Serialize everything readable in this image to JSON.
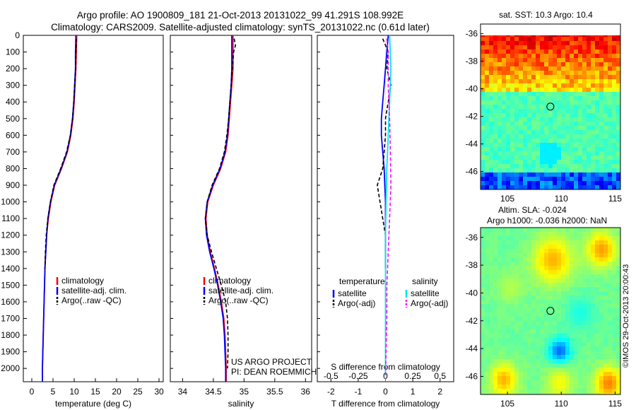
{
  "header": {
    "title_line1": "Argo profile: AO 1900809_181 21-Oct-2013 20131022_99 41.291S 108.992E",
    "title_line2": "Climatology: CARS2009. Satellite-adjusted climatology: synTS_20131022.nc (0.61d later)"
  },
  "project_note": {
    "line1": "US ARGO PROJECT",
    "line2": "PI: DEAN ROEMMICH"
  },
  "footer_stamp": "©IMOS 29-Oct-2013 20:00:43",
  "colors": {
    "climatology": "#ff0000",
    "satellite": "#0000ff",
    "argo": "#000000",
    "salinity_satellite": "#00e5ee",
    "salinity_argo": "#ff00ff"
  },
  "chart_data": [
    {
      "type": "line",
      "panel": "temperature",
      "xlabel": "temperature (deg C)",
      "ylabel": "",
      "xlim": [
        -2,
        31
      ],
      "ylim": [
        2080,
        0
      ],
      "xticks": [
        "0",
        "5",
        "10",
        "15",
        "20",
        "25",
        "30"
      ],
      "yticks": [
        "0",
        "100",
        "200",
        "300",
        "400",
        "500",
        "600",
        "700",
        "800",
        "900",
        "1000",
        "1100",
        "1200",
        "1300",
        "1400",
        "1500",
        "1600",
        "1700",
        "1800",
        "1900",
        "2000"
      ],
      "legend": [
        "climatology",
        "satellite-adj. clim.",
        "Argo(..raw -QC)"
      ],
      "series": [
        {
          "name": "climatology",
          "color": "#ff0000",
          "style": "solid",
          "points": [
            [
              10.6,
              0
            ],
            [
              10.5,
              100
            ],
            [
              10.4,
              200
            ],
            [
              10.2,
              300
            ],
            [
              10.0,
              400
            ],
            [
              9.7,
              500
            ],
            [
              9.2,
              600
            ],
            [
              8.4,
              700
            ],
            [
              7.0,
              800
            ],
            [
              5.4,
              900
            ],
            [
              4.5,
              1000
            ],
            [
              3.9,
              1100
            ],
            [
              3.5,
              1200
            ],
            [
              3.3,
              1300
            ],
            [
              3.1,
              1400
            ],
            [
              3.0,
              1500
            ],
            [
              2.9,
              1600
            ],
            [
              2.8,
              1700
            ],
            [
              2.7,
              1800
            ],
            [
              2.6,
              1900
            ],
            [
              2.5,
              2000
            ],
            [
              2.5,
              2080
            ]
          ]
        },
        {
          "name": "satellite-adj. clim.",
          "color": "#0000ff",
          "style": "solid",
          "points": [
            [
              10.4,
              0
            ],
            [
              10.3,
              100
            ],
            [
              10.3,
              200
            ],
            [
              10.1,
              300
            ],
            [
              9.9,
              400
            ],
            [
              9.6,
              500
            ],
            [
              9.1,
              600
            ],
            [
              8.3,
              700
            ],
            [
              6.9,
              800
            ],
            [
              5.3,
              900
            ],
            [
              4.4,
              1000
            ],
            [
              3.8,
              1100
            ],
            [
              3.5,
              1200
            ],
            [
              3.3,
              1300
            ],
            [
              3.1,
              1400
            ],
            [
              3.0,
              1500
            ],
            [
              2.9,
              1600
            ],
            [
              2.8,
              1700
            ],
            [
              2.7,
              1800
            ],
            [
              2.6,
              1900
            ],
            [
              2.5,
              2000
            ],
            [
              2.5,
              2080
            ]
          ]
        },
        {
          "name": "Argo(..raw -QC)",
          "color": "#000000",
          "style": "dashed",
          "points": [
            [
              10.5,
              20
            ],
            [
              10.4,
              100
            ],
            [
              10.3,
              200
            ],
            [
              10.1,
              300
            ],
            [
              9.9,
              400
            ],
            [
              9.6,
              500
            ],
            [
              9.1,
              600
            ],
            [
              8.2,
              700
            ],
            [
              6.8,
              800
            ],
            [
              5.2,
              900
            ],
            [
              4.4,
              1000
            ],
            [
              3.8,
              1100
            ],
            [
              3.4,
              1200
            ],
            [
              3.2,
              1300
            ],
            [
              3.1,
              1400
            ]
          ]
        }
      ]
    },
    {
      "type": "line",
      "panel": "salinity",
      "xlabel": "salinity",
      "ylabel": "",
      "xlim": [
        33.8,
        36.1
      ],
      "ylim": [
        2080,
        0
      ],
      "xticks": [
        "34",
        "34.5",
        "35",
        "35.5",
        "36"
      ],
      "legend": [
        "climatology",
        "satellite-adj. clim.",
        "Argo(..raw -QC)"
      ],
      "series": [
        {
          "name": "climatology",
          "color": "#ff0000",
          "style": "solid",
          "points": [
            [
              34.82,
              0
            ],
            [
              34.82,
              100
            ],
            [
              34.82,
              200
            ],
            [
              34.8,
              300
            ],
            [
              34.78,
              400
            ],
            [
              34.76,
              500
            ],
            [
              34.74,
              600
            ],
            [
              34.7,
              700
            ],
            [
              34.62,
              800
            ],
            [
              34.5,
              900
            ],
            [
              34.41,
              1000
            ],
            [
              34.38,
              1100
            ],
            [
              34.4,
              1200
            ],
            [
              34.45,
              1300
            ],
            [
              34.52,
              1400
            ],
            [
              34.58,
              1500
            ],
            [
              34.63,
              1600
            ],
            [
              34.67,
              1700
            ],
            [
              34.69,
              1800
            ],
            [
              34.7,
              1900
            ],
            [
              34.71,
              2000
            ],
            [
              34.71,
              2080
            ]
          ]
        },
        {
          "name": "satellite-adj. clim.",
          "color": "#0000ff",
          "style": "solid",
          "points": [
            [
              34.8,
              0
            ],
            [
              34.8,
              100
            ],
            [
              34.8,
              200
            ],
            [
              34.79,
              300
            ],
            [
              34.77,
              400
            ],
            [
              34.75,
              500
            ],
            [
              34.73,
              600
            ],
            [
              34.69,
              700
            ],
            [
              34.61,
              800
            ],
            [
              34.49,
              900
            ],
            [
              34.4,
              1000
            ],
            [
              34.37,
              1100
            ],
            [
              34.39,
              1200
            ],
            [
              34.44,
              1300
            ],
            [
              34.51,
              1400
            ],
            [
              34.57,
              1500
            ],
            [
              34.62,
              1600
            ],
            [
              34.66,
              1700
            ],
            [
              34.68,
              1800
            ],
            [
              34.69,
              1900
            ],
            [
              34.7,
              2000
            ],
            [
              34.7,
              2080
            ]
          ]
        },
        {
          "name": "Argo(..raw -QC)",
          "color": "#000000",
          "style": "dashed",
          "points": [
            [
              34.84,
              20
            ],
            [
              34.86,
              60
            ],
            [
              34.83,
              100
            ],
            [
              34.81,
              200
            ],
            [
              34.79,
              300
            ],
            [
              34.77,
              400
            ],
            [
              34.75,
              500
            ],
            [
              34.72,
              600
            ],
            [
              34.68,
              700
            ],
            [
              34.6,
              800
            ],
            [
              34.48,
              900
            ],
            [
              34.4,
              1000
            ],
            [
              34.37,
              1100
            ],
            [
              34.4,
              1200
            ],
            [
              34.47,
              1300
            ],
            [
              34.55,
              1400
            ],
            [
              34.63,
              1500
            ],
            [
              34.7,
              1600
            ],
            [
              34.73,
              1700
            ],
            [
              34.74,
              1800
            ],
            [
              34.74,
              1900
            ],
            [
              34.73,
              2000
            ]
          ]
        }
      ]
    },
    {
      "type": "line",
      "panel": "difference",
      "xlabel": "T difference from climatology",
      "xlabel_top": "S difference from climatology",
      "xlim": [
        -2.5,
        2.5
      ],
      "ylim": [
        2080,
        0
      ],
      "xticks": [
        "-2",
        "-1",
        "0",
        "1",
        "2"
      ],
      "xticks_top": [
        "-0.5",
        "-0.25",
        "0",
        "0.25",
        "0.5"
      ],
      "legend_titles": [
        "temperature",
        "salinity"
      ],
      "legend": [
        "satellite",
        "Argo(-adj)",
        "satellite",
        "Argo(-adj)"
      ],
      "series": [
        {
          "name": "satellite",
          "color": "#0000ff",
          "style": "solid",
          "points": [
            [
              0.1,
              0
            ],
            [
              0.05,
              100
            ],
            [
              0.0,
              200
            ],
            [
              -0.05,
              300
            ],
            [
              -0.1,
              400
            ],
            [
              -0.15,
              500
            ],
            [
              -0.15,
              600
            ],
            [
              -0.1,
              700
            ],
            [
              -0.05,
              800
            ],
            [
              0.0,
              1000
            ],
            [
              0.0,
              1400
            ]
          ]
        },
        {
          "name": "Argo(-adj)",
          "color": "#000000",
          "style": "dashed",
          "points": [
            [
              -0.1,
              20
            ],
            [
              0.0,
              60
            ],
            [
              0.1,
              100
            ],
            [
              0.05,
              200
            ],
            [
              0.2,
              300
            ],
            [
              0.1,
              400
            ],
            [
              0.0,
              500
            ],
            [
              0.0,
              600
            ],
            [
              -0.05,
              700
            ],
            [
              -0.1,
              800
            ],
            [
              -0.3,
              900
            ],
            [
              -0.2,
              1000
            ],
            [
              -0.1,
              1100
            ],
            [
              0.0,
              1200
            ],
            [
              0.0,
              1300
            ]
          ]
        },
        {
          "name": "satellite",
          "color": "#00e5ee",
          "style": "solid",
          "points": [
            [
              0.15,
              0
            ],
            [
              0.2,
              200
            ],
            [
              0.15,
              400
            ],
            [
              0.1,
              600
            ],
            [
              0.05,
              800
            ],
            [
              0.02,
              1000
            ],
            [
              0.0,
              1200
            ],
            [
              0.0,
              1500
            ],
            [
              0.0,
              2040
            ]
          ]
        },
        {
          "name": "Argo(-adj)",
          "color": "#ff00ff",
          "style": "dashed",
          "points": [
            [
              0.05,
              20
            ],
            [
              0.1,
              100
            ],
            [
              0.1,
              300
            ],
            [
              0.15,
              500
            ],
            [
              0.18,
              700
            ],
            [
              0.2,
              900
            ],
            [
              0.15,
              1100
            ],
            [
              0.1,
              1300
            ],
            [
              0.05,
              1500
            ],
            [
              0.05,
              1700
            ],
            [
              0.02,
              1900
            ],
            [
              0.0,
              2040
            ]
          ]
        }
      ]
    },
    {
      "type": "heatmap",
      "panel": "sst_map",
      "title": "sat. SST: 10.3  Argo: 10.4",
      "xlim": [
        102.5,
        115.5
      ],
      "ylim": [
        -47.3,
        -35.3
      ],
      "xticks": [
        "105",
        "110",
        "115"
      ],
      "yticks": [
        "-36",
        "-38",
        "-40",
        "-42",
        "-44",
        "-46"
      ],
      "marker": {
        "lon": 108.99,
        "lat": -41.29
      }
    },
    {
      "type": "heatmap",
      "panel": "sla_map",
      "title_line1": "Altim. SLA: -0.024",
      "title_line2": "Argo h1000: -0.036  h2000: NaN",
      "xlim": [
        102.5,
        115.5
      ],
      "ylim": [
        -47.3,
        -35.3
      ],
      "xticks": [
        "105",
        "110",
        "115"
      ],
      "yticks": [
        "-36",
        "-38",
        "-40",
        "-42",
        "-44",
        "-46"
      ],
      "marker": {
        "lon": 108.99,
        "lat": -41.29
      }
    }
  ]
}
